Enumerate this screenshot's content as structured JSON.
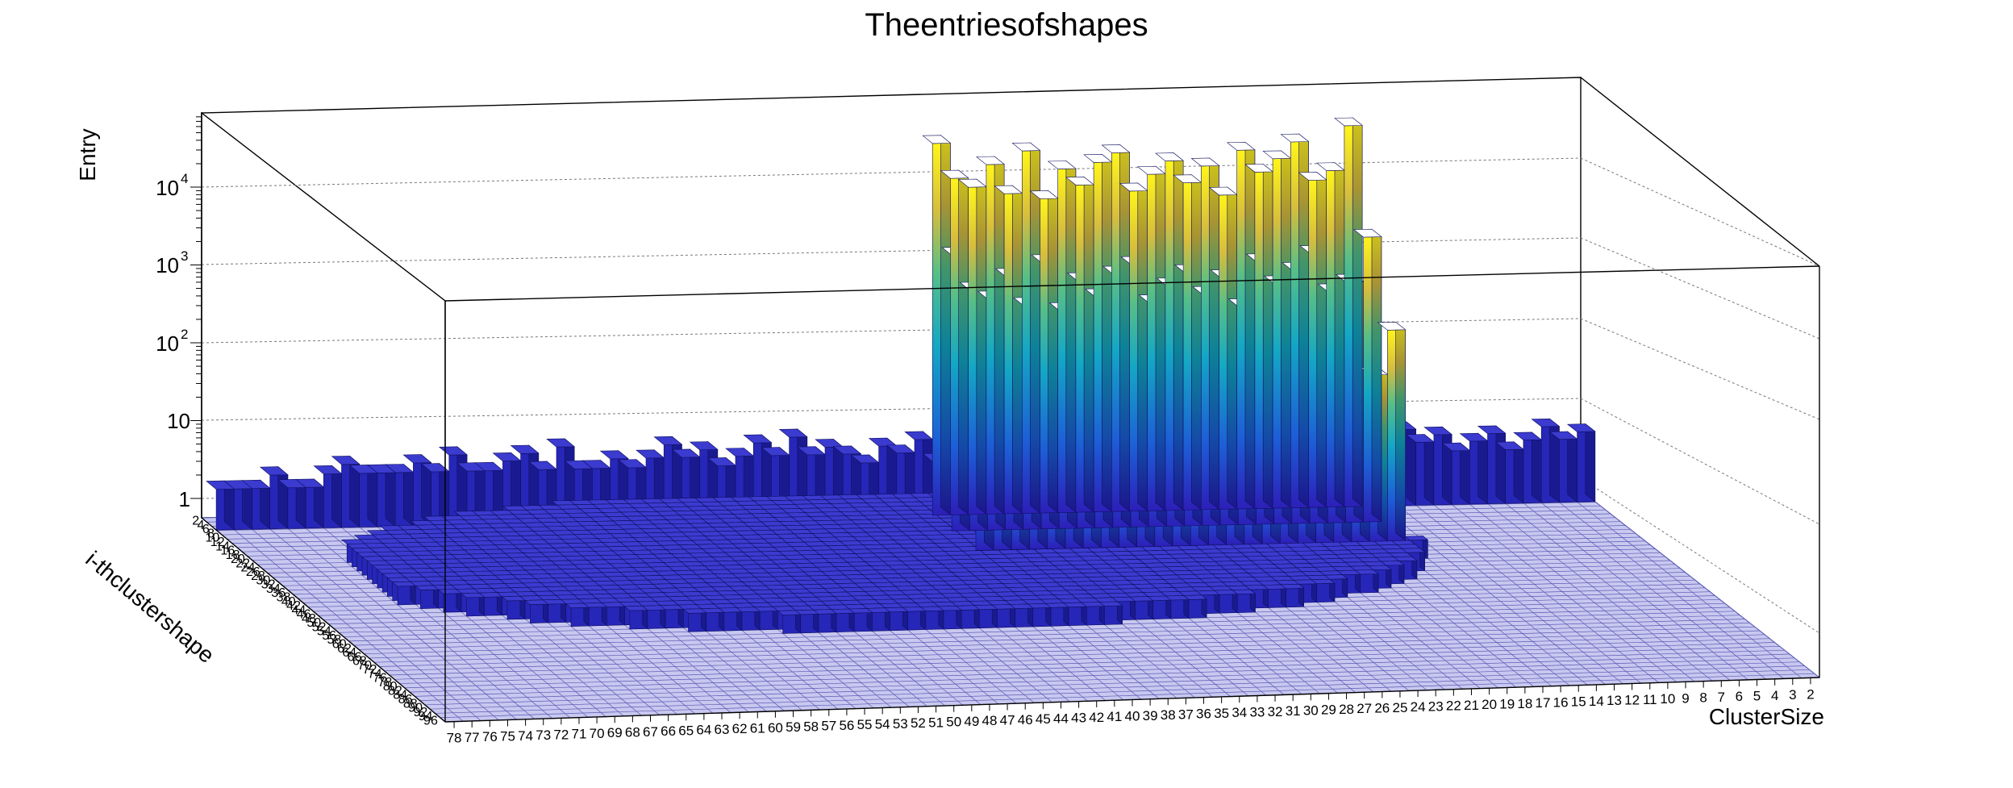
{
  "chart_data": {
    "type": "lego3d",
    "title": "Theentriesofshapes",
    "xlabel": "ClusterSize",
    "ylabel": "i-thclustershape",
    "zlabel": "Entry",
    "z_scale": "log",
    "z_ticks": [
      "1",
      "10",
      "10",
      "10",
      "10"
    ],
    "z_tick_exponents": [
      "",
      "",
      "2",
      "3",
      "4"
    ],
    "x_categories": [
      "78",
      "77",
      "76",
      "75",
      "74",
      "73",
      "72",
      "71",
      "70",
      "69",
      "68",
      "67",
      "66",
      "65",
      "64",
      "63",
      "62",
      "61",
      "60",
      "59",
      "58",
      "57",
      "56",
      "55",
      "54",
      "53",
      "52",
      "51",
      "50",
      "49",
      "48",
      "47",
      "46",
      "45",
      "44",
      "43",
      "42",
      "41",
      "40",
      "39",
      "38",
      "37",
      "36",
      "35",
      "34",
      "33",
      "32",
      "31",
      "30",
      "29",
      "28",
      "27",
      "26",
      "25",
      "24",
      "23",
      "22",
      "21",
      "20",
      "19",
      "18",
      "17",
      "16",
      "15",
      "14",
      "13",
      "12",
      "11",
      "10",
      "9",
      "8",
      "7",
      "6",
      "5",
      "4",
      "3",
      "2"
    ],
    "y_tick_labels": [
      "2",
      "4",
      "6",
      "8",
      "10",
      "12",
      "14",
      "16",
      "18",
      "20",
      "22",
      "24",
      "26",
      "28",
      "30",
      "32",
      "34",
      "36",
      "38",
      "40",
      "42",
      "44",
      "46",
      "48",
      "50",
      "52",
      "54",
      "56",
      "58",
      "60",
      "62",
      "64",
      "66",
      "68",
      "70",
      "72",
      "74",
      "76",
      "78",
      "80",
      "82",
      "84",
      "86",
      "88",
      "90",
      "92",
      "94",
      "96"
    ],
    "back_row_entries": [
      2,
      2,
      2,
      3,
      2,
      2,
      3,
      4,
      3,
      3,
      3,
      4,
      3,
      5,
      3,
      3,
      4,
      5,
      3,
      6,
      3,
      3,
      4,
      3,
      4,
      6,
      4,
      5,
      3,
      4,
      6,
      4,
      7,
      4,
      5,
      4,
      3,
      5,
      4,
      6,
      3,
      4,
      7,
      5,
      6,
      4,
      5,
      3,
      4,
      3,
      5,
      4,
      3,
      4,
      6,
      5,
      4,
      3,
      5,
      4,
      6,
      4,
      3,
      5,
      4,
      3,
      6,
      4,
      5,
      3,
      4,
      5,
      3,
      4,
      6,
      4,
      5
    ],
    "peak_entries": [
      60000,
      20000,
      15000,
      30000,
      12000,
      45000,
      10000,
      25000,
      15000,
      30000,
      40000,
      12000,
      20000,
      30000,
      15000,
      25000,
      10000,
      40000,
      20000,
      30000,
      50000,
      15000,
      20000,
      80000
    ],
    "grid": true
  }
}
